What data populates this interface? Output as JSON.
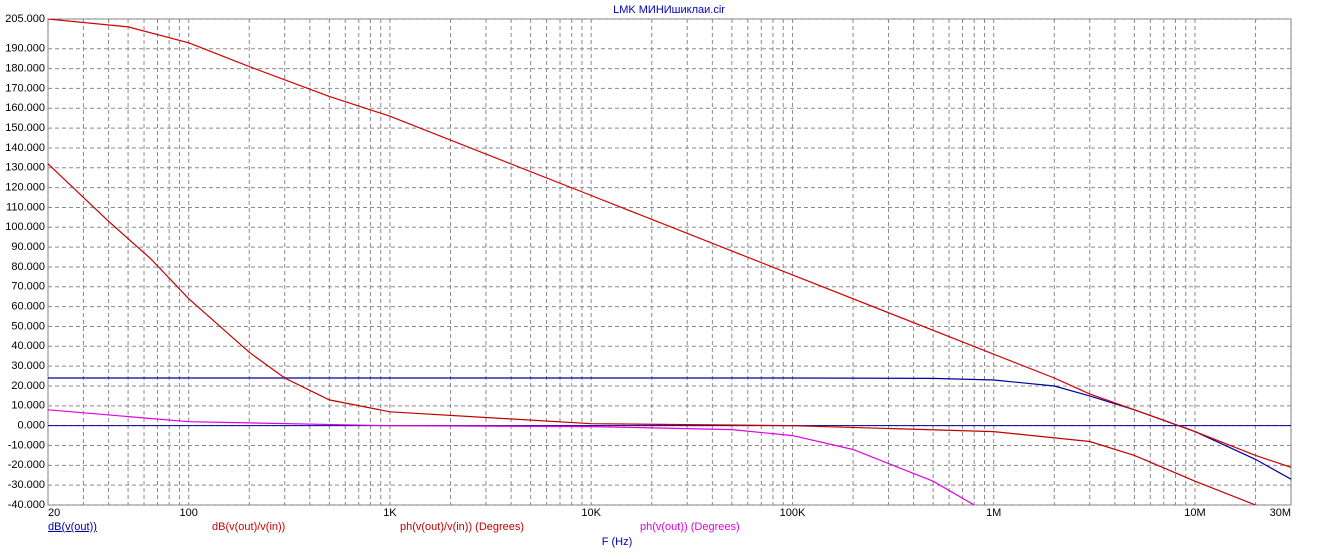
{
  "chart_data": {
    "type": "line",
    "title": "LMK МИНИшиклаи.cir",
    "x_label": "F (Hz)",
    "x_log": true,
    "grid": true,
    "xlim": [
      20,
      30000000
    ],
    "xticks": [
      {
        "value": 20,
        "label": "20"
      },
      {
        "value": 100,
        "label": "100"
      },
      {
        "value": 1000,
        "label": "1K"
      },
      {
        "value": 10000,
        "label": "10K"
      },
      {
        "value": 100000,
        "label": "100K"
      },
      {
        "value": 1000000,
        "label": "1M"
      },
      {
        "value": 10000000,
        "label": "10M"
      },
      {
        "value": 30000000,
        "label": "30M"
      }
    ],
    "xminorticks": [
      30,
      40,
      50,
      60,
      70,
      80,
      90,
      200,
      300,
      400,
      500,
      600,
      700,
      800,
      900,
      2000,
      3000,
      4000,
      5000,
      6000,
      7000,
      8000,
      9000,
      20000,
      30000,
      40000,
      50000,
      60000,
      70000,
      80000,
      90000,
      200000,
      300000,
      400000,
      500000,
      600000,
      700000,
      800000,
      900000,
      2000000,
      3000000,
      4000000,
      5000000,
      6000000,
      7000000,
      8000000,
      9000000,
      20000000
    ],
    "ylim": [
      -40,
      205
    ],
    "yticks": [
      {
        "value": 205,
        "label": "205.000"
      },
      {
        "value": 190,
        "label": "190.000"
      },
      {
        "value": 180,
        "label": "180.000"
      },
      {
        "value": 170,
        "label": "170.000"
      },
      {
        "value": 160,
        "label": "160.000"
      },
      {
        "value": 150,
        "label": "150.000"
      },
      {
        "value": 140,
        "label": "140.000"
      },
      {
        "value": 130,
        "label": "130.000"
      },
      {
        "value": 120,
        "label": "120.000"
      },
      {
        "value": 110,
        "label": "110.000"
      },
      {
        "value": 100,
        "label": "100.000"
      },
      {
        "value": 90,
        "label": "90.000"
      },
      {
        "value": 80,
        "label": "80.000"
      },
      {
        "value": 70,
        "label": "70.000"
      },
      {
        "value": 60,
        "label": "60.000"
      },
      {
        "value": 50,
        "label": "50.000"
      },
      {
        "value": 40,
        "label": "40.000"
      },
      {
        "value": 30,
        "label": "30.000"
      },
      {
        "value": 20,
        "label": "20.000"
      },
      {
        "value": 10,
        "label": "10.000"
      },
      {
        "value": 0,
        "label": "0.000"
      },
      {
        "value": -10,
        "label": "-10.000"
      },
      {
        "value": -20,
        "label": "-20.000"
      },
      {
        "value": -30,
        "label": "-30.000"
      },
      {
        "value": -40,
        "label": "-40.000"
      }
    ],
    "series": [
      {
        "name": "dB(v(out))",
        "color": "#0000a0",
        "x": [
          20,
          1000,
          100000,
          500000,
          1000000,
          2000000,
          3000000,
          5000000,
          10000000,
          20000000,
          30000000
        ],
        "values": [
          24,
          24,
          24,
          23.8,
          23,
          20,
          15,
          8,
          -3,
          -17,
          -27
        ]
      },
      {
        "name": "dB(v(out)/v(in))",
        "color": "#d00000",
        "x": [
          20,
          50,
          100,
          200,
          500,
          1000,
          10000,
          100000,
          1000000,
          2000000,
          3000000,
          5000000,
          10000000,
          20000000,
          30000000
        ],
        "values": [
          205,
          201,
          193,
          181,
          166,
          156,
          116,
          76,
          36,
          24,
          16,
          8,
          -3,
          -15,
          -21
        ]
      },
      {
        "name": "ph(v(out)/v(in)) (Degrees)",
        "color": "#c00000",
        "x": [
          20,
          40,
          65,
          100,
          200,
          300,
          500,
          1000,
          10000,
          100000,
          1000000,
          3000000,
          5000000,
          10000000,
          20000000
        ],
        "values": [
          132,
          103,
          84,
          64,
          37,
          24,
          13,
          7,
          1,
          0,
          -3,
          -8,
          -15,
          -28,
          -40
        ]
      },
      {
        "name": "ph(v(out)) (Degrees)",
        "color": "#e000e0",
        "x": [
          20,
          100,
          1000,
          10000,
          50000,
          100000,
          200000,
          500000,
          800000
        ],
        "values": [
          8,
          2,
          0,
          -0.5,
          -2,
          -5,
          -12,
          -28,
          -40
        ]
      }
    ]
  }
}
